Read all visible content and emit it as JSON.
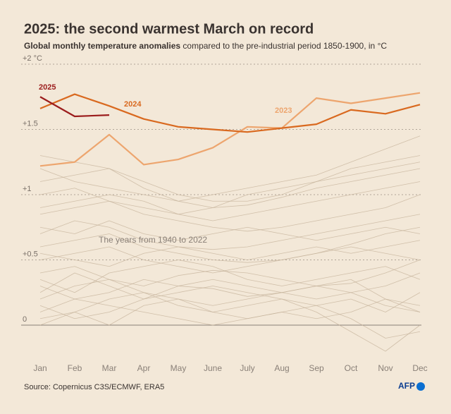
{
  "chart_data": {
    "type": "line",
    "title": "2025: the second warmest March on record",
    "subtitle": [
      "Global monthly temperature anomalies",
      " compared to the pre-industrial period 1850-1900, in °C"
    ],
    "source": "Source: Copernicus C3S/ECMWF, ERA5",
    "logo": "AFP",
    "categories": [
      "Jan",
      "Feb",
      "Mar",
      "Apr",
      "May",
      "June",
      "July",
      "Aug",
      "Sep",
      "Oct",
      "Nov",
      "Dec"
    ],
    "ylim": [
      -0.2,
      2
    ],
    "yticks": [
      {
        "value": 0,
        "label": "0"
      },
      {
        "value": 0.5,
        "label": "+0.5"
      },
      {
        "value": 1,
        "label": "+1"
      },
      {
        "value": 1.5,
        "label": "+1.5"
      },
      {
        "value": 2,
        "label": "+2 °C"
      }
    ],
    "grid": true,
    "background_color": "#c4b29a",
    "series": [
      {
        "values": [
          0.05,
          0.1,
          0.0,
          0.15,
          0.2,
          0.1,
          0.05,
          0.1,
          0.15,
          0.2,
          0.1,
          0.25
        ]
      },
      {
        "values": [
          0.3,
          0.2,
          0.25,
          0.35,
          0.3,
          0.28,
          0.22,
          0.25,
          0.3,
          0.35,
          0.2,
          0.1
        ]
      },
      {
        "values": [
          0.15,
          0.05,
          0.1,
          0.2,
          0.25,
          0.3,
          0.25,
          0.2,
          0.15,
          0.05,
          -0.1,
          -0.05
        ]
      },
      {
        "values": [
          0.4,
          0.45,
          0.35,
          0.3,
          0.38,
          0.42,
          0.4,
          0.35,
          0.3,
          0.32,
          0.4,
          0.5
        ]
      },
      {
        "values": [
          0.2,
          0.3,
          0.35,
          0.25,
          0.15,
          0.1,
          0.15,
          0.2,
          0.1,
          -0.05,
          -0.2,
          0.0
        ]
      },
      {
        "values": [
          0.5,
          0.55,
          0.6,
          0.5,
          0.45,
          0.4,
          0.45,
          0.5,
          0.55,
          0.6,
          0.55,
          0.5
        ]
      },
      {
        "values": [
          0.6,
          0.65,
          0.7,
          0.6,
          0.55,
          0.5,
          0.48,
          0.5,
          0.55,
          0.62,
          0.7,
          0.75
        ]
      },
      {
        "values": [
          0.7,
          0.8,
          0.75,
          0.65,
          0.6,
          0.58,
          0.6,
          0.65,
          0.7,
          0.75,
          0.8,
          0.85
        ]
      },
      {
        "values": [
          0.85,
          0.9,
          0.95,
          0.85,
          0.8,
          0.75,
          0.72,
          0.75,
          0.8,
          0.85,
          0.9,
          1.0
        ]
      },
      {
        "values": [
          1.0,
          1.05,
          0.95,
          0.9,
          0.85,
          0.8,
          0.85,
          0.9,
          0.95,
          1.0,
          1.05,
          1.1
        ]
      },
      {
        "values": [
          1.1,
          1.15,
          1.2,
          1.05,
          0.95,
          0.9,
          0.92,
          0.98,
          1.05,
          1.1,
          1.15,
          1.2
        ]
      },
      {
        "values": [
          1.3,
          1.25,
          1.2,
          1.1,
          1.0,
          0.95,
          0.95,
          1.0,
          1.1,
          1.2,
          1.25,
          1.3
        ]
      },
      {
        "values": [
          0.9,
          0.95,
          1.0,
          0.95,
          0.85,
          0.9,
          1.0,
          1.05,
          1.1,
          1.15,
          1.2,
          1.25
        ]
      },
      {
        "values": [
          0.1,
          0.2,
          0.15,
          0.1,
          0.05,
          0.0,
          0.05,
          0.1,
          0.05,
          0.1,
          0.2,
          0.15
        ]
      },
      {
        "values": [
          0.35,
          0.25,
          0.4,
          0.45,
          0.5,
          0.45,
          0.35,
          0.3,
          0.35,
          0.4,
          0.45,
          0.35
        ]
      },
      {
        "values": [
          0.25,
          0.4,
          0.3,
          0.2,
          0.3,
          0.35,
          0.3,
          0.25,
          0.2,
          0.25,
          0.3,
          0.4
        ]
      },
      {
        "values": [
          0.55,
          0.5,
          0.45,
          0.55,
          0.6,
          0.55,
          0.5,
          0.55,
          0.6,
          0.55,
          0.6,
          0.65
        ]
      },
      {
        "values": [
          0.75,
          0.7,
          0.8,
          0.7,
          0.65,
          0.7,
          0.75,
          0.7,
          0.65,
          0.7,
          0.75,
          0.7
        ]
      },
      {
        "values": [
          0.0,
          0.1,
          0.2,
          0.25,
          0.2,
          0.15,
          0.2,
          0.25,
          0.3,
          0.25,
          0.15,
          0.1
        ]
      },
      {
        "values": [
          1.2,
          1.1,
          1.05,
          1.0,
          0.95,
          1.0,
          1.05,
          1.1,
          1.15,
          1.25,
          1.35,
          1.45
        ]
      },
      {
        "name": "2023",
        "color": "#eda56e",
        "values": [
          1.22,
          1.25,
          1.46,
          1.23,
          1.27,
          1.36,
          1.52,
          1.51,
          1.74,
          1.7,
          1.74,
          1.78
        ]
      },
      {
        "name": "2024",
        "color": "#d9691f",
        "values": [
          1.66,
          1.77,
          1.68,
          1.58,
          1.52,
          1.5,
          1.48,
          1.51,
          1.54,
          1.65,
          1.62,
          1.69
        ]
      },
      {
        "name": "2025",
        "color": "#9b1c1c",
        "values": [
          1.75,
          1.6,
          1.61,
          null,
          null,
          null,
          null,
          null,
          null,
          null,
          null,
          null
        ]
      }
    ],
    "annotations": [
      {
        "text": "2025",
        "color": "#9b1c1c"
      },
      {
        "text": "2024",
        "color": "#d9691f"
      },
      {
        "text": "2023",
        "color": "#eda56e"
      },
      {
        "text": "The years from 1940 to 2022",
        "color": "#8a8078"
      }
    ]
  }
}
